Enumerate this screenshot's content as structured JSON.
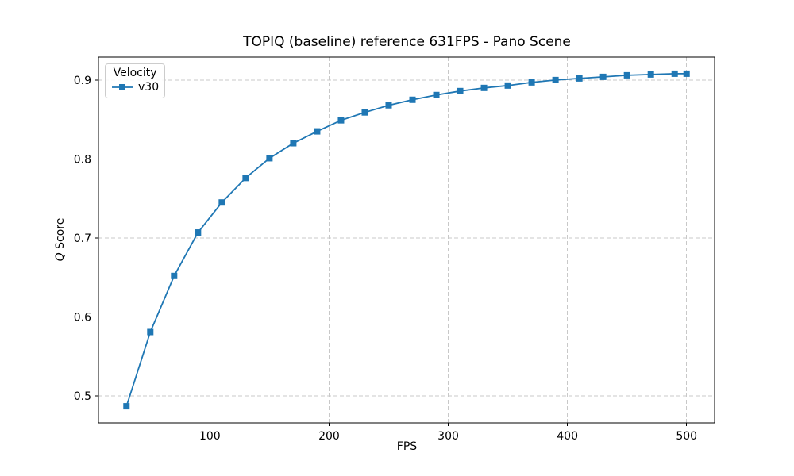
{
  "chart_data": {
    "type": "line",
    "title": "TOPIQ (baseline) reference 631FPS - Pano Scene",
    "xlabel": "FPS",
    "ylabel": "Q Score",
    "ylabel_parts": {
      "italic": "Q",
      "rest": " Score"
    },
    "xlim": [
      6.5,
      523.5
    ],
    "ylim": [
      0.466,
      0.929
    ],
    "xticks": [
      100,
      200,
      300,
      400,
      500
    ],
    "yticks": [
      0.5,
      0.6,
      0.7,
      0.8,
      0.9
    ],
    "grid": true,
    "grid_style": "dashed",
    "legend": {
      "title": "Velocity",
      "position": "upper-left",
      "entries": [
        {
          "label": "v30",
          "color": "#1f77b4",
          "marker": "square"
        }
      ]
    },
    "series": [
      {
        "name": "v30",
        "color": "#1f77b4",
        "marker": "square",
        "x": [
          30,
          50,
          70,
          90,
          110,
          130,
          150,
          170,
          190,
          210,
          230,
          250,
          270,
          290,
          310,
          330,
          350,
          370,
          390,
          410,
          430,
          450,
          470,
          490,
          500
        ],
        "y": [
          0.487,
          0.581,
          0.652,
          0.707,
          0.745,
          0.776,
          0.801,
          0.82,
          0.835,
          0.849,
          0.859,
          0.868,
          0.875,
          0.881,
          0.886,
          0.89,
          0.893,
          0.897,
          0.9,
          0.902,
          0.904,
          0.906,
          0.907,
          0.908,
          0.908
        ]
      }
    ],
    "colors": {
      "line": "#1f77b4",
      "grid": "#c8c8c8",
      "spine": "#000000",
      "text": "#000000"
    }
  }
}
